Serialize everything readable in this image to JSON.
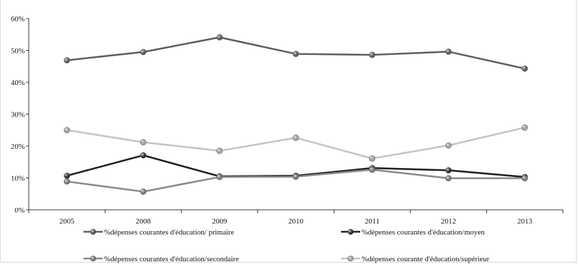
{
  "chart_data": {
    "type": "line",
    "title": "",
    "xlabel": "",
    "ylabel": "",
    "categories": [
      "2005",
      "2008",
      "2009",
      "2010",
      "2011",
      "2012",
      "2013"
    ],
    "ylim": [
      0,
      0.6
    ],
    "yticks": [
      "0%",
      "10%",
      "20%",
      "30%",
      "40%",
      "50%",
      "60%"
    ],
    "grid": false,
    "legend_position": "bottom",
    "series": [
      {
        "name": "%dépenses courantes d'éducation/ primaire",
        "color": "#5f5f5f",
        "values": [
          0.469,
          0.495,
          0.541,
          0.489,
          0.486,
          0.496,
          0.443
        ]
      },
      {
        "name": "%dépenses courantes d'éducation/moyen",
        "color": "#202020",
        "values": [
          0.107,
          0.171,
          0.105,
          0.107,
          0.131,
          0.124,
          0.103
        ]
      },
      {
        "name": "%dépenses courantes d'éducation/secondaire",
        "color": "#8a8a8a",
        "values": [
          0.089,
          0.057,
          0.103,
          0.104,
          0.126,
          0.099,
          0.099
        ]
      },
      {
        "name": "%dépenses courante d'éducation/supérieur",
        "color": "#c4c4c4",
        "values": [
          0.25,
          0.212,
          0.185,
          0.226,
          0.161,
          0.202,
          0.258
        ]
      }
    ]
  }
}
